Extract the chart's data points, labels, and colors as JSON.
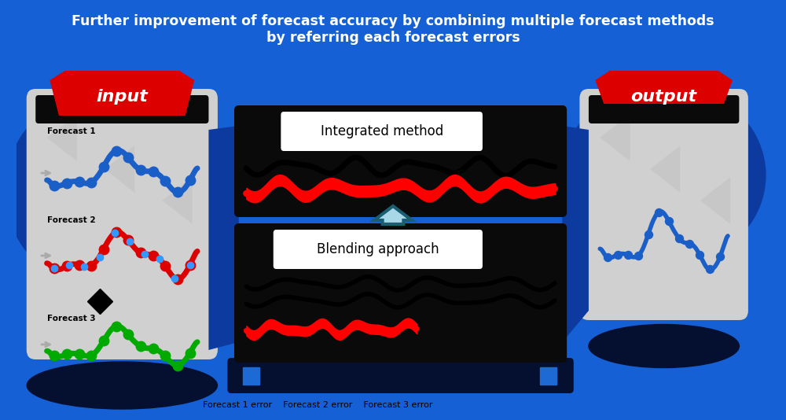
{
  "title_line1": "Further improvement of forecast accuracy by combining multiple forecast methods",
  "title_line2": "by referring each forecast errors",
  "title_color": "#ffffff",
  "title_fontsize": 12.5,
  "bg_color": "#1560d4",
  "input_label": "input",
  "output_label": "output",
  "integrated_method_label": "Integrated method",
  "blending_approach_label": "Blending approach",
  "red_badge_color": "#dd0000",
  "badge_text_color": "#ffffff",
  "dark_blue_arch": "#0d3a9e",
  "darker_blue": "#0a2a7a",
  "gray_box_color": "#d0d0d0",
  "black_color": "#0a0a0a",
  "red_signal_color": "#ff0000",
  "arrow_outer_color": "#1a5e70",
  "arrow_inner_color": "#a8d8e8",
  "blue_line_color": "#1a5fc8",
  "red_line_color": "#dd0000",
  "green_line_color": "#00aa00",
  "white_color": "#ffffff",
  "medium_blue": "#1e6ad4"
}
